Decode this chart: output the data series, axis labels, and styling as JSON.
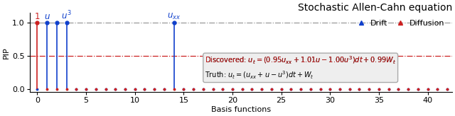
{
  "title": "Stochastic Allen-Cahn equation",
  "xlabel": "Basis functions",
  "ylabel": "PIP",
  "xlim": [
    -0.8,
    42.5
  ],
  "ylim": [
    -0.04,
    1.15
  ],
  "hline_1_y": 1.0,
  "hline_05_y": 0.5,
  "n_basis": 43,
  "drift_high": [
    1,
    2,
    3,
    14
  ],
  "drift_low_val": 0.005,
  "diffusion_high": [
    0
  ],
  "diffusion_low_val": 0.005,
  "drift_color": "#1040CC",
  "diffusion_color": "#CC2020",
  "hline1_color": "#999999",
  "hline05_color": "#CC2020",
  "label_positions": [
    {
      "x": 0,
      "label": "1",
      "color": "#CC2020"
    },
    {
      "x": 1,
      "label": "u",
      "color": "#1040CC"
    },
    {
      "x": 3,
      "label": "u^3",
      "color": "#1040CC"
    },
    {
      "x": 14,
      "label": "u_{xx}",
      "color": "#1040CC"
    }
  ],
  "discovered_color": "#CC2020",
  "truth_color": "#000000",
  "box_facecolor": "#eeeeee",
  "box_edgecolor": "#aaaaaa",
  "legend_drift": "Drift",
  "legend_diffusion": "Diffusion",
  "figsize": [
    6.4,
    1.64
  ],
  "dpi": 100,
  "title_fontsize": 10,
  "axis_fontsize": 8,
  "tick_fontsize": 8,
  "label_fontsize": 8.5,
  "text_fontsize": 7,
  "legend_fontsize": 8
}
